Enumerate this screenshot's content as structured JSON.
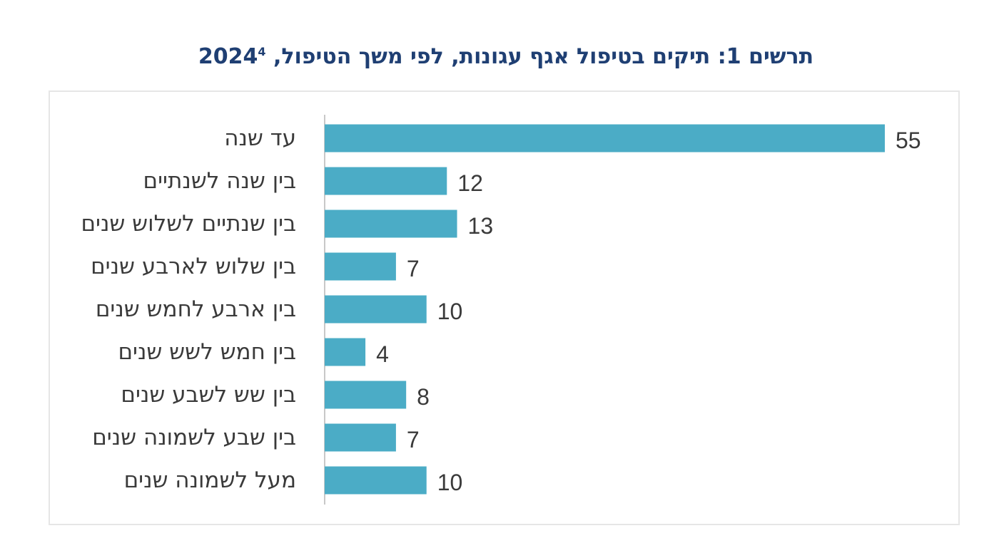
{
  "chart_data": {
    "type": "bar",
    "orientation": "horizontal",
    "title": "תרשים 1: תיקים בטיפול אגף עגונות, לפי משך הטיפול, 2024",
    "title_footnote": "4",
    "categories": [
      "עד שנה",
      "בין שנה לשנתיים",
      "בין שנתיים לשלוש שנים",
      "בין שלוש לארבע שנים",
      "בין ארבע לחמש שנים",
      "בין חמש לשש שנים",
      "בין שש לשבע שנים",
      "בין שבע לשמונה שנים",
      "מעל לשמונה שנים"
    ],
    "values": [
      55,
      12,
      13,
      7,
      10,
      4,
      8,
      7,
      10
    ],
    "xlim": [
      0,
      55
    ],
    "grid": false,
    "legend": "none",
    "bar_color": "#4bacc6",
    "axis_color": "#c8c8c8",
    "title_color": "#1f3f73"
  }
}
